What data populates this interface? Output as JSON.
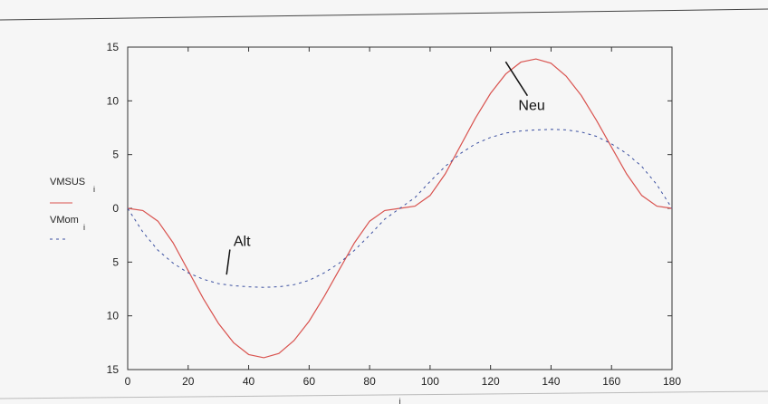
{
  "chart_data": {
    "type": "line",
    "xlabel": "i",
    "ylabel": "",
    "xlim": [
      0,
      180
    ],
    "ylim": [
      -15,
      15
    ],
    "xticks": [
      0,
      20,
      40,
      60,
      80,
      100,
      120,
      140,
      160,
      180
    ],
    "yticks": [
      15,
      10,
      5,
      0,
      5,
      10,
      15
    ],
    "grid": false,
    "legend_placement": "left",
    "series": [
      {
        "name": "VMSUS",
        "subscript": "i",
        "color": "#d9534f",
        "style": "solid",
        "x": [
          0,
          5,
          10,
          15,
          20,
          25,
          30,
          35,
          40,
          45,
          50,
          55,
          60,
          65,
          70,
          75,
          80,
          85,
          90,
          95,
          100,
          105,
          110,
          115,
          120,
          125,
          130,
          135,
          140,
          145,
          150,
          155,
          160,
          165,
          170,
          175,
          180
        ],
        "y": [
          0,
          -0.2,
          -1.2,
          -3.2,
          -5.8,
          -8.4,
          -10.7,
          -12.5,
          -13.6,
          -13.9,
          -13.5,
          -12.3,
          -10.5,
          -8.2,
          -5.7,
          -3.2,
          -1.2,
          -0.2,
          0,
          0.2,
          1.2,
          3.2,
          5.8,
          8.4,
          10.7,
          12.5,
          13.6,
          13.9,
          13.5,
          12.3,
          10.5,
          8.2,
          5.7,
          3.2,
          1.2,
          0.2,
          0
        ]
      },
      {
        "name": "VMom",
        "subscript": "i",
        "color": "#3a4fa0",
        "style": "dashed",
        "x": [
          0,
          5,
          10,
          15,
          20,
          25,
          30,
          35,
          40,
          45,
          50,
          55,
          60,
          65,
          70,
          75,
          80,
          85,
          90,
          95,
          100,
          105,
          110,
          115,
          120,
          125,
          130,
          135,
          140,
          145,
          150,
          155,
          160,
          165,
          170,
          175,
          180
        ],
        "y": [
          0,
          -2.2,
          -3.9,
          -5.1,
          -6.0,
          -6.6,
          -7.0,
          -7.2,
          -7.3,
          -7.35,
          -7.3,
          -7.1,
          -6.7,
          -6.0,
          -5.1,
          -3.9,
          -2.5,
          -1.0,
          0,
          1.0,
          2.5,
          3.9,
          5.1,
          6.0,
          6.6,
          7.0,
          7.2,
          7.3,
          7.35,
          7.3,
          7.1,
          6.7,
          6.0,
          5.1,
          3.9,
          2.2,
          0
        ]
      }
    ],
    "annotations": [
      {
        "text": "Alt",
        "x": 35,
        "y": -3.5,
        "pointer_to": [
          30,
          -6.5
        ]
      },
      {
        "text": "Neu",
        "x": 131,
        "y": 9.8,
        "pointer_to": [
          122,
          13.3
        ]
      }
    ]
  }
}
